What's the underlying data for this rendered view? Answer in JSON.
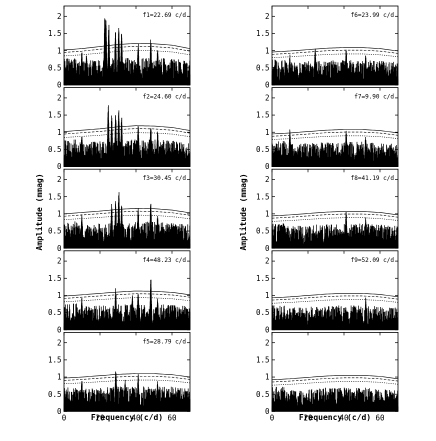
{
  "chart_data": {
    "type": "line",
    "figure_type": "stacked amplitude spectra (prewhitening sequence)",
    "xlabel": "Frequency (c/d)",
    "ylabel": "Amplitude (mmag)",
    "xlim": [
      0,
      70
    ],
    "ylim": [
      0,
      2.3
    ],
    "xticks": [
      0,
      20,
      40,
      60
    ],
    "yticks": [
      0,
      0.5,
      1,
      1.5,
      2
    ],
    "grid": false,
    "panels": [
      {
        "label": "f1=22.69 c/d",
        "column": "left",
        "noise": [
          1.02,
          1.06,
          1.12,
          1.18,
          1.21,
          1.2,
          1.16,
          1.06
        ],
        "peaks": [
          [
            9.9,
            1.05
          ],
          [
            12.5,
            0.95
          ],
          [
            22.7,
            2.05
          ],
          [
            23.3,
            1.9
          ],
          [
            24.9,
            1.8
          ],
          [
            28.6,
            1.65
          ],
          [
            30.4,
            1.75
          ],
          [
            32.0,
            1.55
          ],
          [
            41.2,
            1.25
          ],
          [
            48.2,
            1.35
          ],
          [
            52.0,
            1.1
          ]
        ]
      },
      {
        "label": "f2=24.60 c/d",
        "column": "left",
        "noise": [
          1.02,
          1.06,
          1.1,
          1.16,
          1.19,
          1.18,
          1.14,
          1.05
        ],
        "peaks": [
          [
            9.9,
            1.0
          ],
          [
            24.6,
            1.85
          ],
          [
            26.5,
            1.55
          ],
          [
            28.7,
            1.55
          ],
          [
            30.4,
            1.75
          ],
          [
            32.0,
            1.5
          ],
          [
            41.2,
            1.25
          ],
          [
            48.2,
            1.3
          ],
          [
            52.0,
            1.05
          ]
        ]
      },
      {
        "label": "f3=30.45 c/d",
        "column": "left",
        "noise": [
          1.0,
          1.04,
          1.08,
          1.13,
          1.16,
          1.15,
          1.11,
          1.03
        ],
        "peaks": [
          [
            9.9,
            1.0
          ],
          [
            26.5,
            1.3
          ],
          [
            28.7,
            1.4
          ],
          [
            30.45,
            1.75
          ],
          [
            32.0,
            1.3
          ],
          [
            41.2,
            1.2
          ],
          [
            48.2,
            1.4
          ],
          [
            52.0,
            1.0
          ]
        ]
      },
      {
        "label": "f4=48.23 c/d",
        "column": "left",
        "noise": [
          0.98,
          1.02,
          1.06,
          1.1,
          1.13,
          1.12,
          1.09,
          1.02
        ],
        "peaks": [
          [
            9.9,
            0.95
          ],
          [
            28.7,
            1.25
          ],
          [
            38.0,
            1.05
          ],
          [
            41.2,
            1.15
          ],
          [
            48.23,
            1.6
          ],
          [
            52.0,
            0.95
          ]
        ]
      },
      {
        "label": "f5=28.79 c/d",
        "column": "left",
        "noise": [
          0.97,
          1.0,
          1.04,
          1.08,
          1.1,
          1.1,
          1.07,
          1.0
        ],
        "peaks": [
          [
            9.9,
            0.95
          ],
          [
            28.79,
            1.3
          ],
          [
            34.0,
            0.95
          ],
          [
            41.2,
            1.1
          ],
          [
            52.0,
            0.9
          ]
        ]
      },
      {
        "label": "f6=23.99 c/d",
        "column": "right",
        "noise": [
          0.96,
          0.99,
          1.03,
          1.07,
          1.09,
          1.09,
          1.06,
          0.99
        ],
        "peaks": [
          [
            9.9,
            0.9
          ],
          [
            23.99,
            1.15
          ],
          [
            41.2,
            1.1
          ],
          [
            52.0,
            0.9
          ]
        ]
      },
      {
        "label": "f7=9.90 c/d",
        "column": "right",
        "noise": [
          0.95,
          0.98,
          1.02,
          1.06,
          1.08,
          1.08,
          1.05,
          0.98
        ],
        "peaks": [
          [
            9.9,
            1.15
          ],
          [
            41.2,
            1.1
          ],
          [
            52.0,
            0.88
          ]
        ]
      },
      {
        "label": "f8=41.19 c/d",
        "column": "right",
        "noise": [
          0.94,
          0.97,
          1.01,
          1.05,
          1.07,
          1.07,
          1.04,
          0.97
        ],
        "peaks": [
          [
            41.19,
            1.1
          ],
          [
            52.0,
            0.9
          ]
        ]
      },
      {
        "label": "f9=52.09 c/d",
        "column": "right",
        "noise": [
          0.93,
          0.96,
          1.0,
          1.04,
          1.06,
          1.06,
          1.03,
          0.96
        ],
        "peaks": [
          [
            52.09,
            0.95
          ]
        ]
      },
      {
        "label": "",
        "column": "right",
        "noise": [
          0.92,
          0.95,
          0.99,
          1.03,
          1.05,
          1.05,
          1.02,
          0.95
        ],
        "peaks": []
      }
    ],
    "noise_knots_x": [
      0,
      10,
      20,
      30,
      40,
      50,
      60,
      70
    ],
    "noise_curve_factors": [
      1.0,
      0.93,
      0.83
    ]
  }
}
